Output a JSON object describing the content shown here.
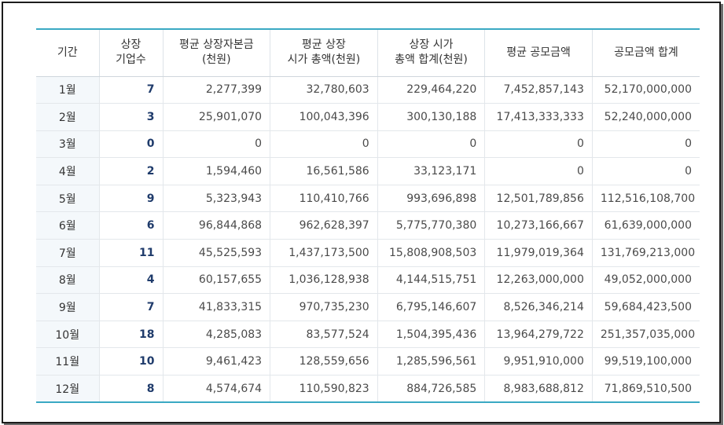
{
  "table": {
    "headers": [
      "기간",
      "상장\n기업수",
      "평균 상장자본금\n(천원)",
      "평균 상장\n시가 총액(천원)",
      "상장 시가\n총액 합계(천원)",
      "평균 공모금액",
      "공모금액 합계"
    ],
    "rows": [
      [
        "1월",
        "7",
        "2,277,399",
        "32,780,603",
        "229,464,220",
        "7,452,857,143",
        "52,170,000,000"
      ],
      [
        "2월",
        "3",
        "25,901,070",
        "100,043,396",
        "300,130,188",
        "17,413,333,333",
        "52,240,000,000"
      ],
      [
        "3월",
        "0",
        "0",
        "0",
        "0",
        "0",
        "0"
      ],
      [
        "4월",
        "2",
        "1,594,460",
        "16,561,586",
        "33,123,171",
        "0",
        "0"
      ],
      [
        "5월",
        "9",
        "5,323,943",
        "110,410,766",
        "993,696,898",
        "12,501,789,856",
        "112,516,108,700"
      ],
      [
        "6월",
        "6",
        "96,844,868",
        "962,628,397",
        "5,775,770,380",
        "10,273,166,667",
        "61,639,000,000"
      ],
      [
        "7월",
        "11",
        "45,525,593",
        "1,437,173,500",
        "15,808,908,503",
        "11,979,019,364",
        "131,769,213,000"
      ],
      [
        "8월",
        "4",
        "60,157,655",
        "1,036,128,938",
        "4,144,515,751",
        "12,263,000,000",
        "49,052,000,000"
      ],
      [
        "9월",
        "7",
        "41,833,315",
        "970,735,230",
        "6,795,146,607",
        "8,526,346,214",
        "59,684,423,500"
      ],
      [
        "10월",
        "18",
        "4,285,083",
        "83,577,524",
        "1,504,395,436",
        "13,964,279,722",
        "251,357,035,000"
      ],
      [
        "11월",
        "10",
        "9,461,423",
        "128,559,656",
        "1,285,596,561",
        "9,951,910,000",
        "99,519,100,000"
      ],
      [
        "12월",
        "8",
        "4,574,674",
        "110,590,823",
        "884,726,585",
        "8,983,688,812",
        "71,869,510,500"
      ]
    ]
  }
}
